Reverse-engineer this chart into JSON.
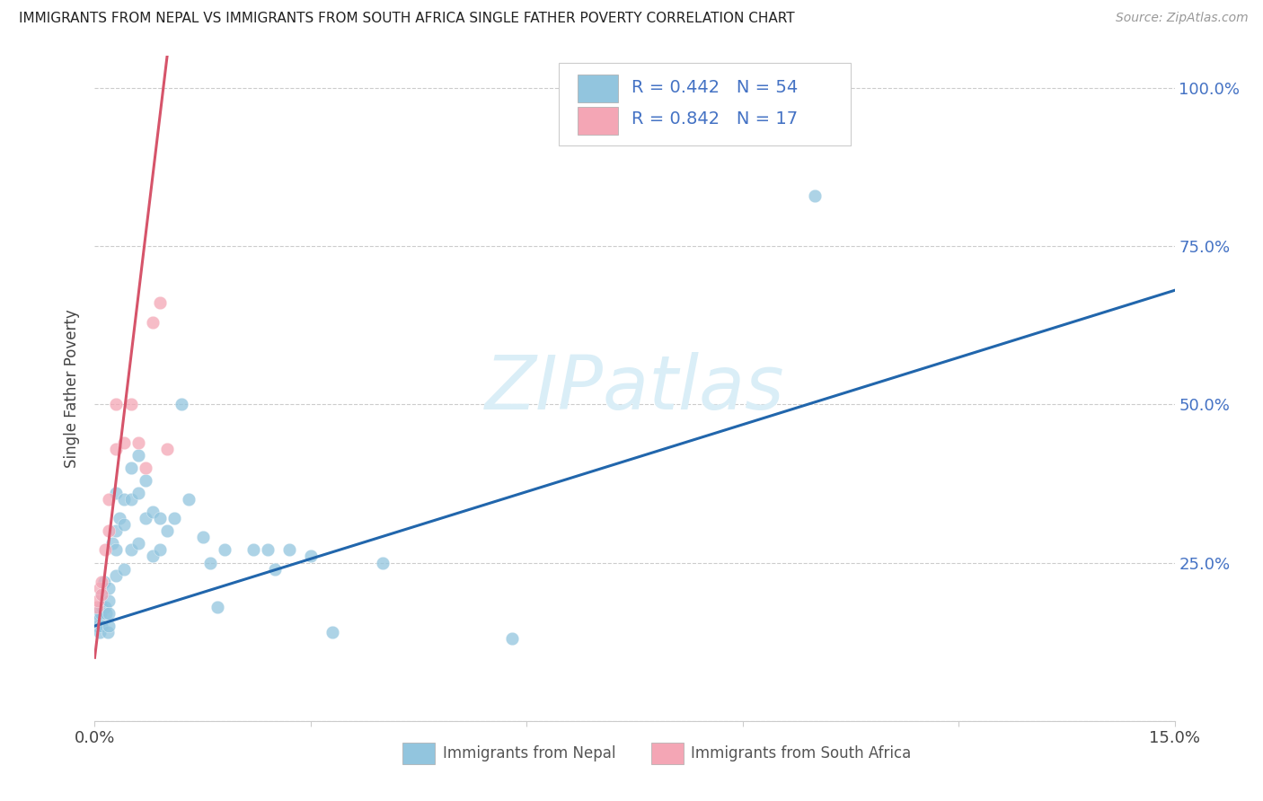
{
  "title": "IMMIGRANTS FROM NEPAL VS IMMIGRANTS FROM SOUTH AFRICA SINGLE FATHER POVERTY CORRELATION CHART",
  "source": "Source: ZipAtlas.com",
  "ylabel": "Single Father Poverty",
  "xlim": [
    0.0,
    0.15
  ],
  "ylim": [
    0.0,
    1.05
  ],
  "xtick_vals": [
    0.0,
    0.03,
    0.06,
    0.09,
    0.12,
    0.15
  ],
  "xtick_labels": [
    "0.0%",
    "",
    "",
    "",
    "",
    "15.0%"
  ],
  "ytick_vals": [
    0.0,
    0.25,
    0.5,
    0.75,
    1.0
  ],
  "ytick_labels_right": [
    "",
    "25.0%",
    "50.0%",
    "75.0%",
    "100.0%"
  ],
  "nepal_R": "0.442",
  "nepal_N": "54",
  "sa_R": "0.842",
  "sa_N": "17",
  "nepal_color": "#92c5de",
  "sa_color": "#f4a6b5",
  "nepal_line_color": "#2166ac",
  "sa_line_color": "#d6546a",
  "watermark_text": "ZIPatlas",
  "watermark_color": "#daeef7",
  "legend_label_nepal": "Immigrants from Nepal",
  "legend_label_sa": "Immigrants from South Africa",
  "nepal_x": [
    0.0003,
    0.0005,
    0.0006,
    0.0007,
    0.0008,
    0.001,
    0.001,
    0.001,
    0.0013,
    0.0015,
    0.0016,
    0.0018,
    0.002,
    0.002,
    0.002,
    0.002,
    0.0025,
    0.003,
    0.003,
    0.003,
    0.003,
    0.0035,
    0.004,
    0.004,
    0.004,
    0.005,
    0.005,
    0.005,
    0.006,
    0.006,
    0.006,
    0.007,
    0.007,
    0.008,
    0.008,
    0.009,
    0.009,
    0.01,
    0.011,
    0.012,
    0.013,
    0.015,
    0.016,
    0.017,
    0.018,
    0.022,
    0.024,
    0.025,
    0.027,
    0.03,
    0.033,
    0.04,
    0.058,
    0.1
  ],
  "nepal_y": [
    0.17,
    0.15,
    0.16,
    0.14,
    0.17,
    0.2,
    0.18,
    0.15,
    0.22,
    0.18,
    0.17,
    0.14,
    0.21,
    0.19,
    0.17,
    0.15,
    0.28,
    0.36,
    0.3,
    0.27,
    0.23,
    0.32,
    0.35,
    0.31,
    0.24,
    0.4,
    0.35,
    0.27,
    0.42,
    0.36,
    0.28,
    0.38,
    0.32,
    0.33,
    0.26,
    0.32,
    0.27,
    0.3,
    0.32,
    0.5,
    0.35,
    0.29,
    0.25,
    0.18,
    0.27,
    0.27,
    0.27,
    0.24,
    0.27,
    0.26,
    0.14,
    0.25,
    0.13,
    0.83
  ],
  "sa_x": [
    0.0003,
    0.0005,
    0.0007,
    0.001,
    0.001,
    0.0015,
    0.002,
    0.002,
    0.003,
    0.003,
    0.004,
    0.005,
    0.006,
    0.007,
    0.008,
    0.009,
    0.01
  ],
  "sa_y": [
    0.18,
    0.19,
    0.21,
    0.22,
    0.2,
    0.27,
    0.35,
    0.3,
    0.43,
    0.5,
    0.44,
    0.5,
    0.44,
    0.4,
    0.63,
    0.66,
    0.43
  ]
}
